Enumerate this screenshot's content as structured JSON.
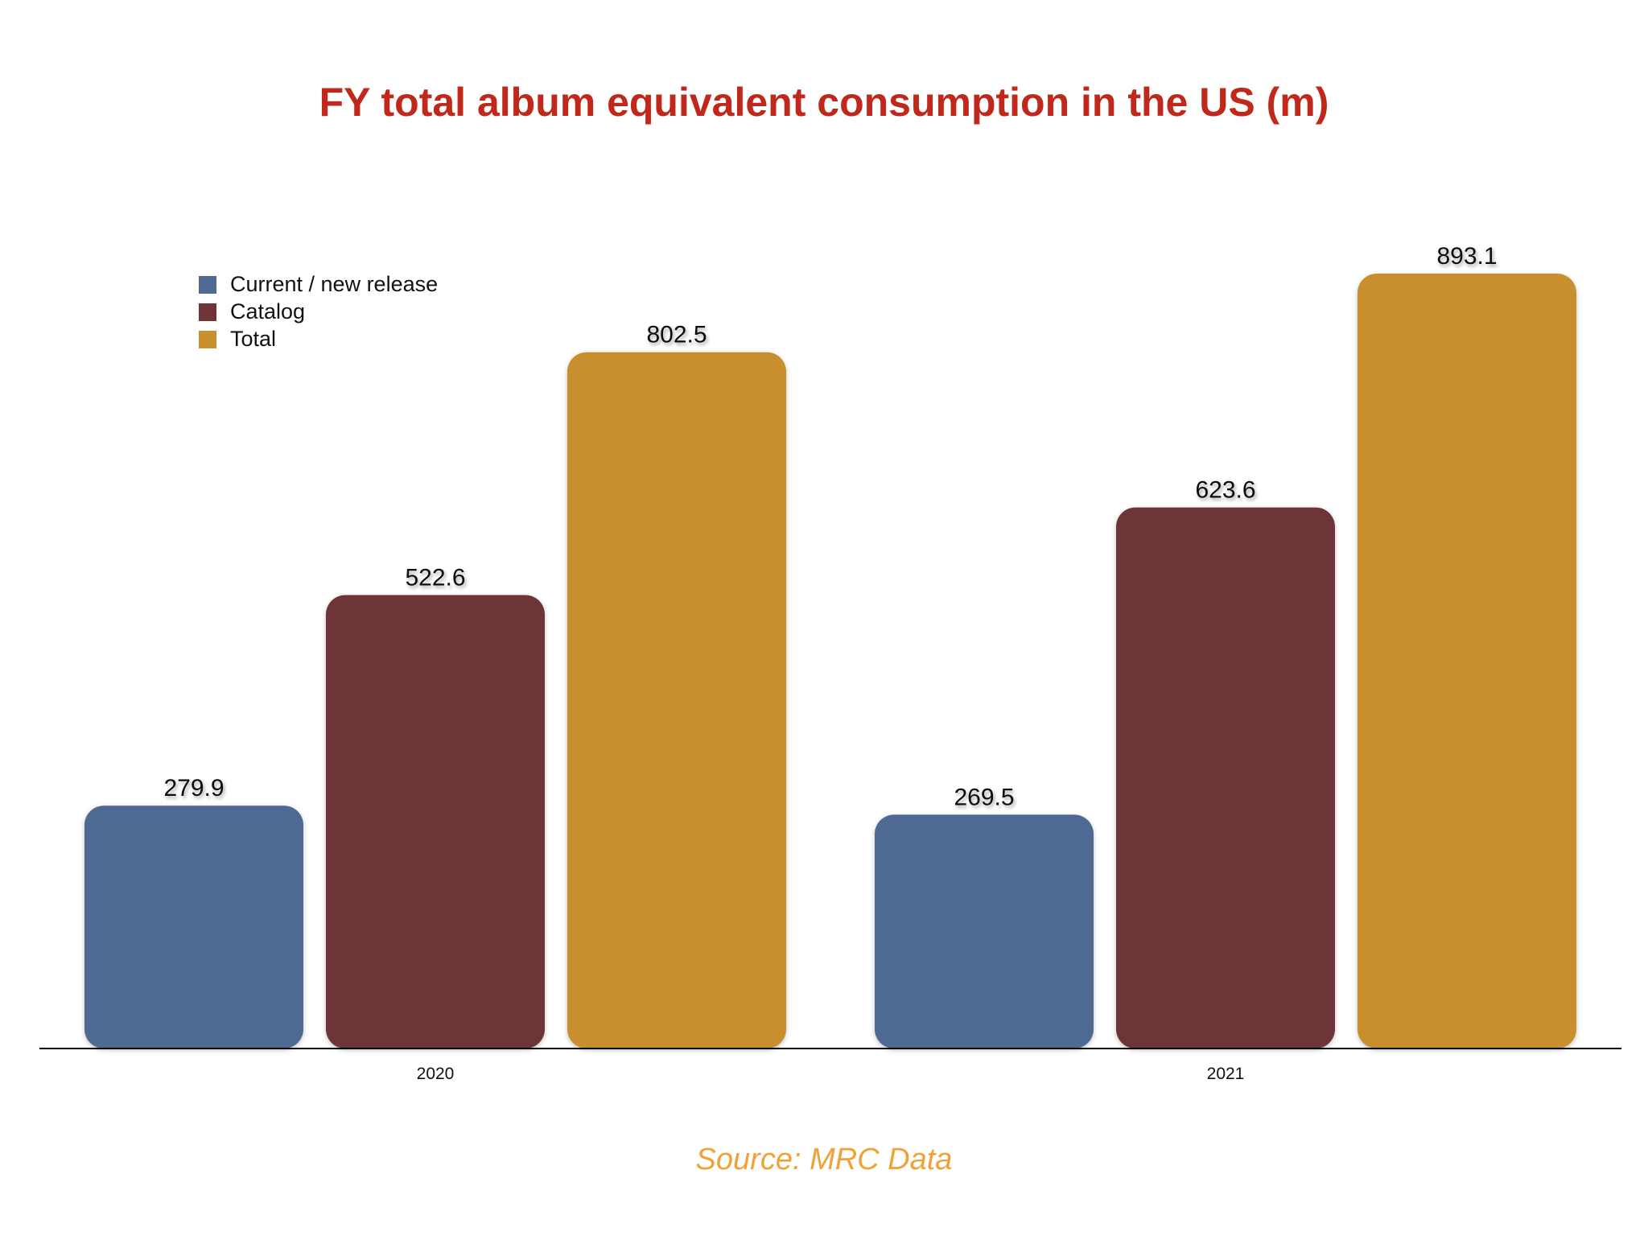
{
  "chart_data": {
    "type": "bar",
    "title": "FY total album equivalent consumption in the US (m)",
    "categories": [
      "2020",
      "2021"
    ],
    "series": [
      {
        "name": "Current / new release",
        "color": "#4f6a92",
        "values": [
          279.9,
          269.5
        ]
      },
      {
        "name": "Catalog",
        "color": "#6e3438",
        "values": [
          522.6,
          623.6
        ]
      },
      {
        "name": "Total",
        "color": "#c98f2e",
        "values": [
          802.5,
          893.1
        ]
      }
    ],
    "data_labels": [
      [
        "279.9",
        "269.5"
      ],
      [
        "522.6",
        "623.6"
      ],
      [
        "802.5",
        "893.1"
      ]
    ],
    "ylim": [
      0,
      893.1
    ],
    "grid": false,
    "legend": "top-left",
    "source": "Source: MRC Data"
  }
}
